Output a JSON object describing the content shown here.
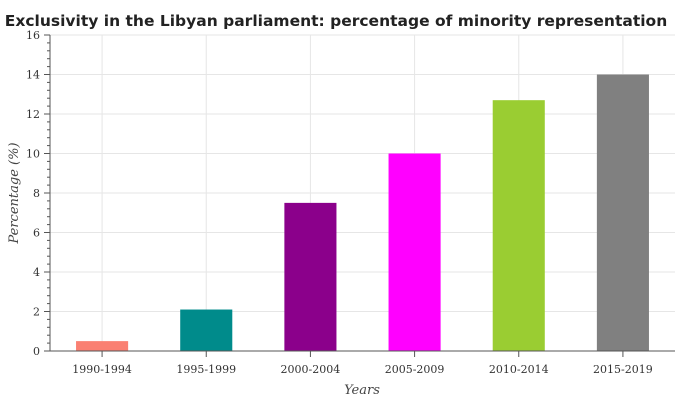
{
  "chart_data": {
    "type": "bar",
    "title": "Exclusivity in the Libyan parliament: percentage of minority representation",
    "xlabel": "Years",
    "ylabel": "Percentage (%)",
    "categories": [
      "1990-1994",
      "1995-1999",
      "2000-2004",
      "2005-2009",
      "2010-2014",
      "2015-2019"
    ],
    "values": [
      0.5,
      2.1,
      7.5,
      10.0,
      12.7,
      14.0
    ],
    "colors": [
      "#fa8072",
      "#008b8b",
      "#8b008b",
      "#ff00ff",
      "#9acd32",
      "#808080"
    ],
    "ylim": [
      0,
      16
    ],
    "yticks": [
      0,
      2,
      4,
      6,
      8,
      10,
      12,
      14,
      16
    ],
    "grid": true,
    "legend": "none"
  }
}
